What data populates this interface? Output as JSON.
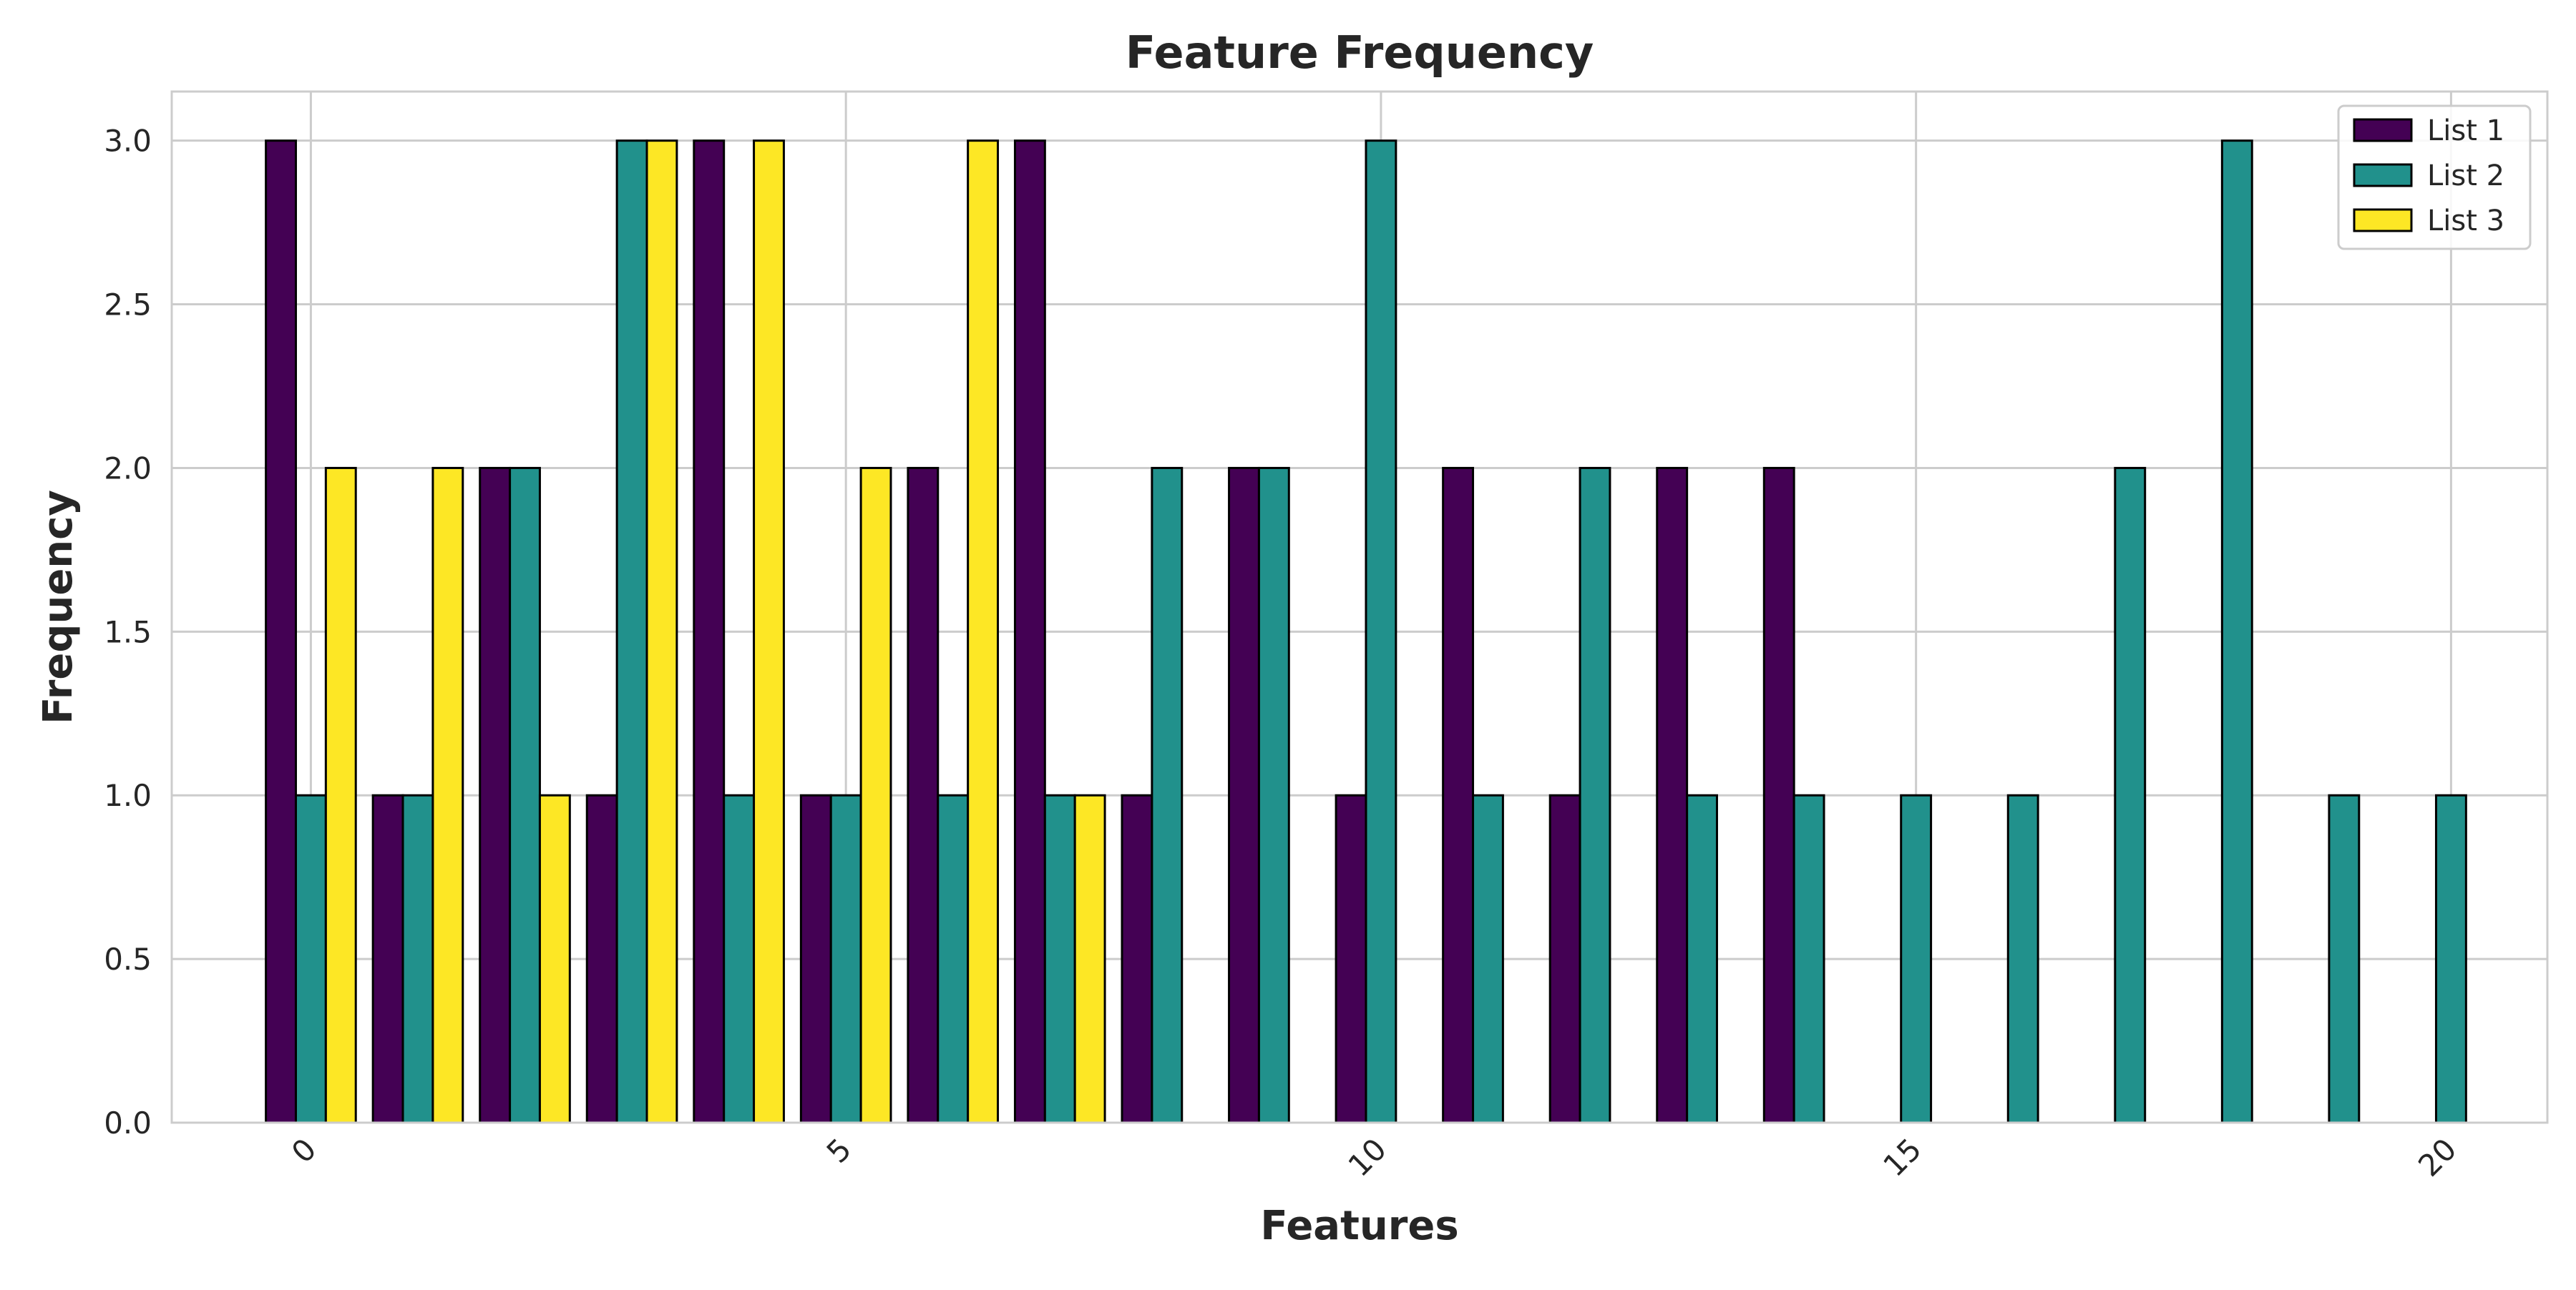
{
  "chart_data": {
    "type": "bar",
    "title": "Feature Frequency",
    "xlabel": "Features",
    "ylabel": "Frequency",
    "xlim": [
      -1.3,
      20.9
    ],
    "ylim": [
      0,
      3.15
    ],
    "xticks": [
      0,
      5,
      10,
      15,
      20
    ],
    "xtick_labels": [
      "0",
      "5",
      "10",
      "15",
      "20"
    ],
    "yticks": [
      0,
      0.5,
      1,
      1.5,
      2,
      2.5,
      3
    ],
    "ytick_labels": [
      "0.0",
      "0.5",
      "1.0",
      "1.5",
      "2.0",
      "2.5",
      "3.0"
    ],
    "grid": true,
    "legend_position": "top-right",
    "categories": [
      0,
      1,
      2,
      3,
      4,
      5,
      6,
      7,
      8,
      9,
      10,
      11,
      12,
      13,
      14,
      15,
      16,
      17,
      18,
      19,
      20
    ],
    "series": [
      {
        "name": "List 1",
        "color": "#440154",
        "values": [
          3,
          1,
          2,
          1,
          3,
          1,
          2,
          3,
          1,
          2,
          1,
          2,
          1,
          2,
          2,
          0,
          0,
          0,
          0,
          0,
          0
        ]
      },
      {
        "name": "List 2",
        "color": "#21918c",
        "values": [
          1,
          1,
          2,
          3,
          1,
          1,
          1,
          1,
          2,
          2,
          3,
          1,
          2,
          1,
          1,
          1,
          1,
          2,
          3,
          1,
          1
        ]
      },
      {
        "name": "List 3",
        "color": "#fde725",
        "values": [
          2,
          2,
          1,
          3,
          3,
          2,
          3,
          1,
          0,
          0,
          0,
          0,
          0,
          0,
          0,
          0,
          0,
          0,
          0,
          0,
          0
        ]
      }
    ]
  }
}
